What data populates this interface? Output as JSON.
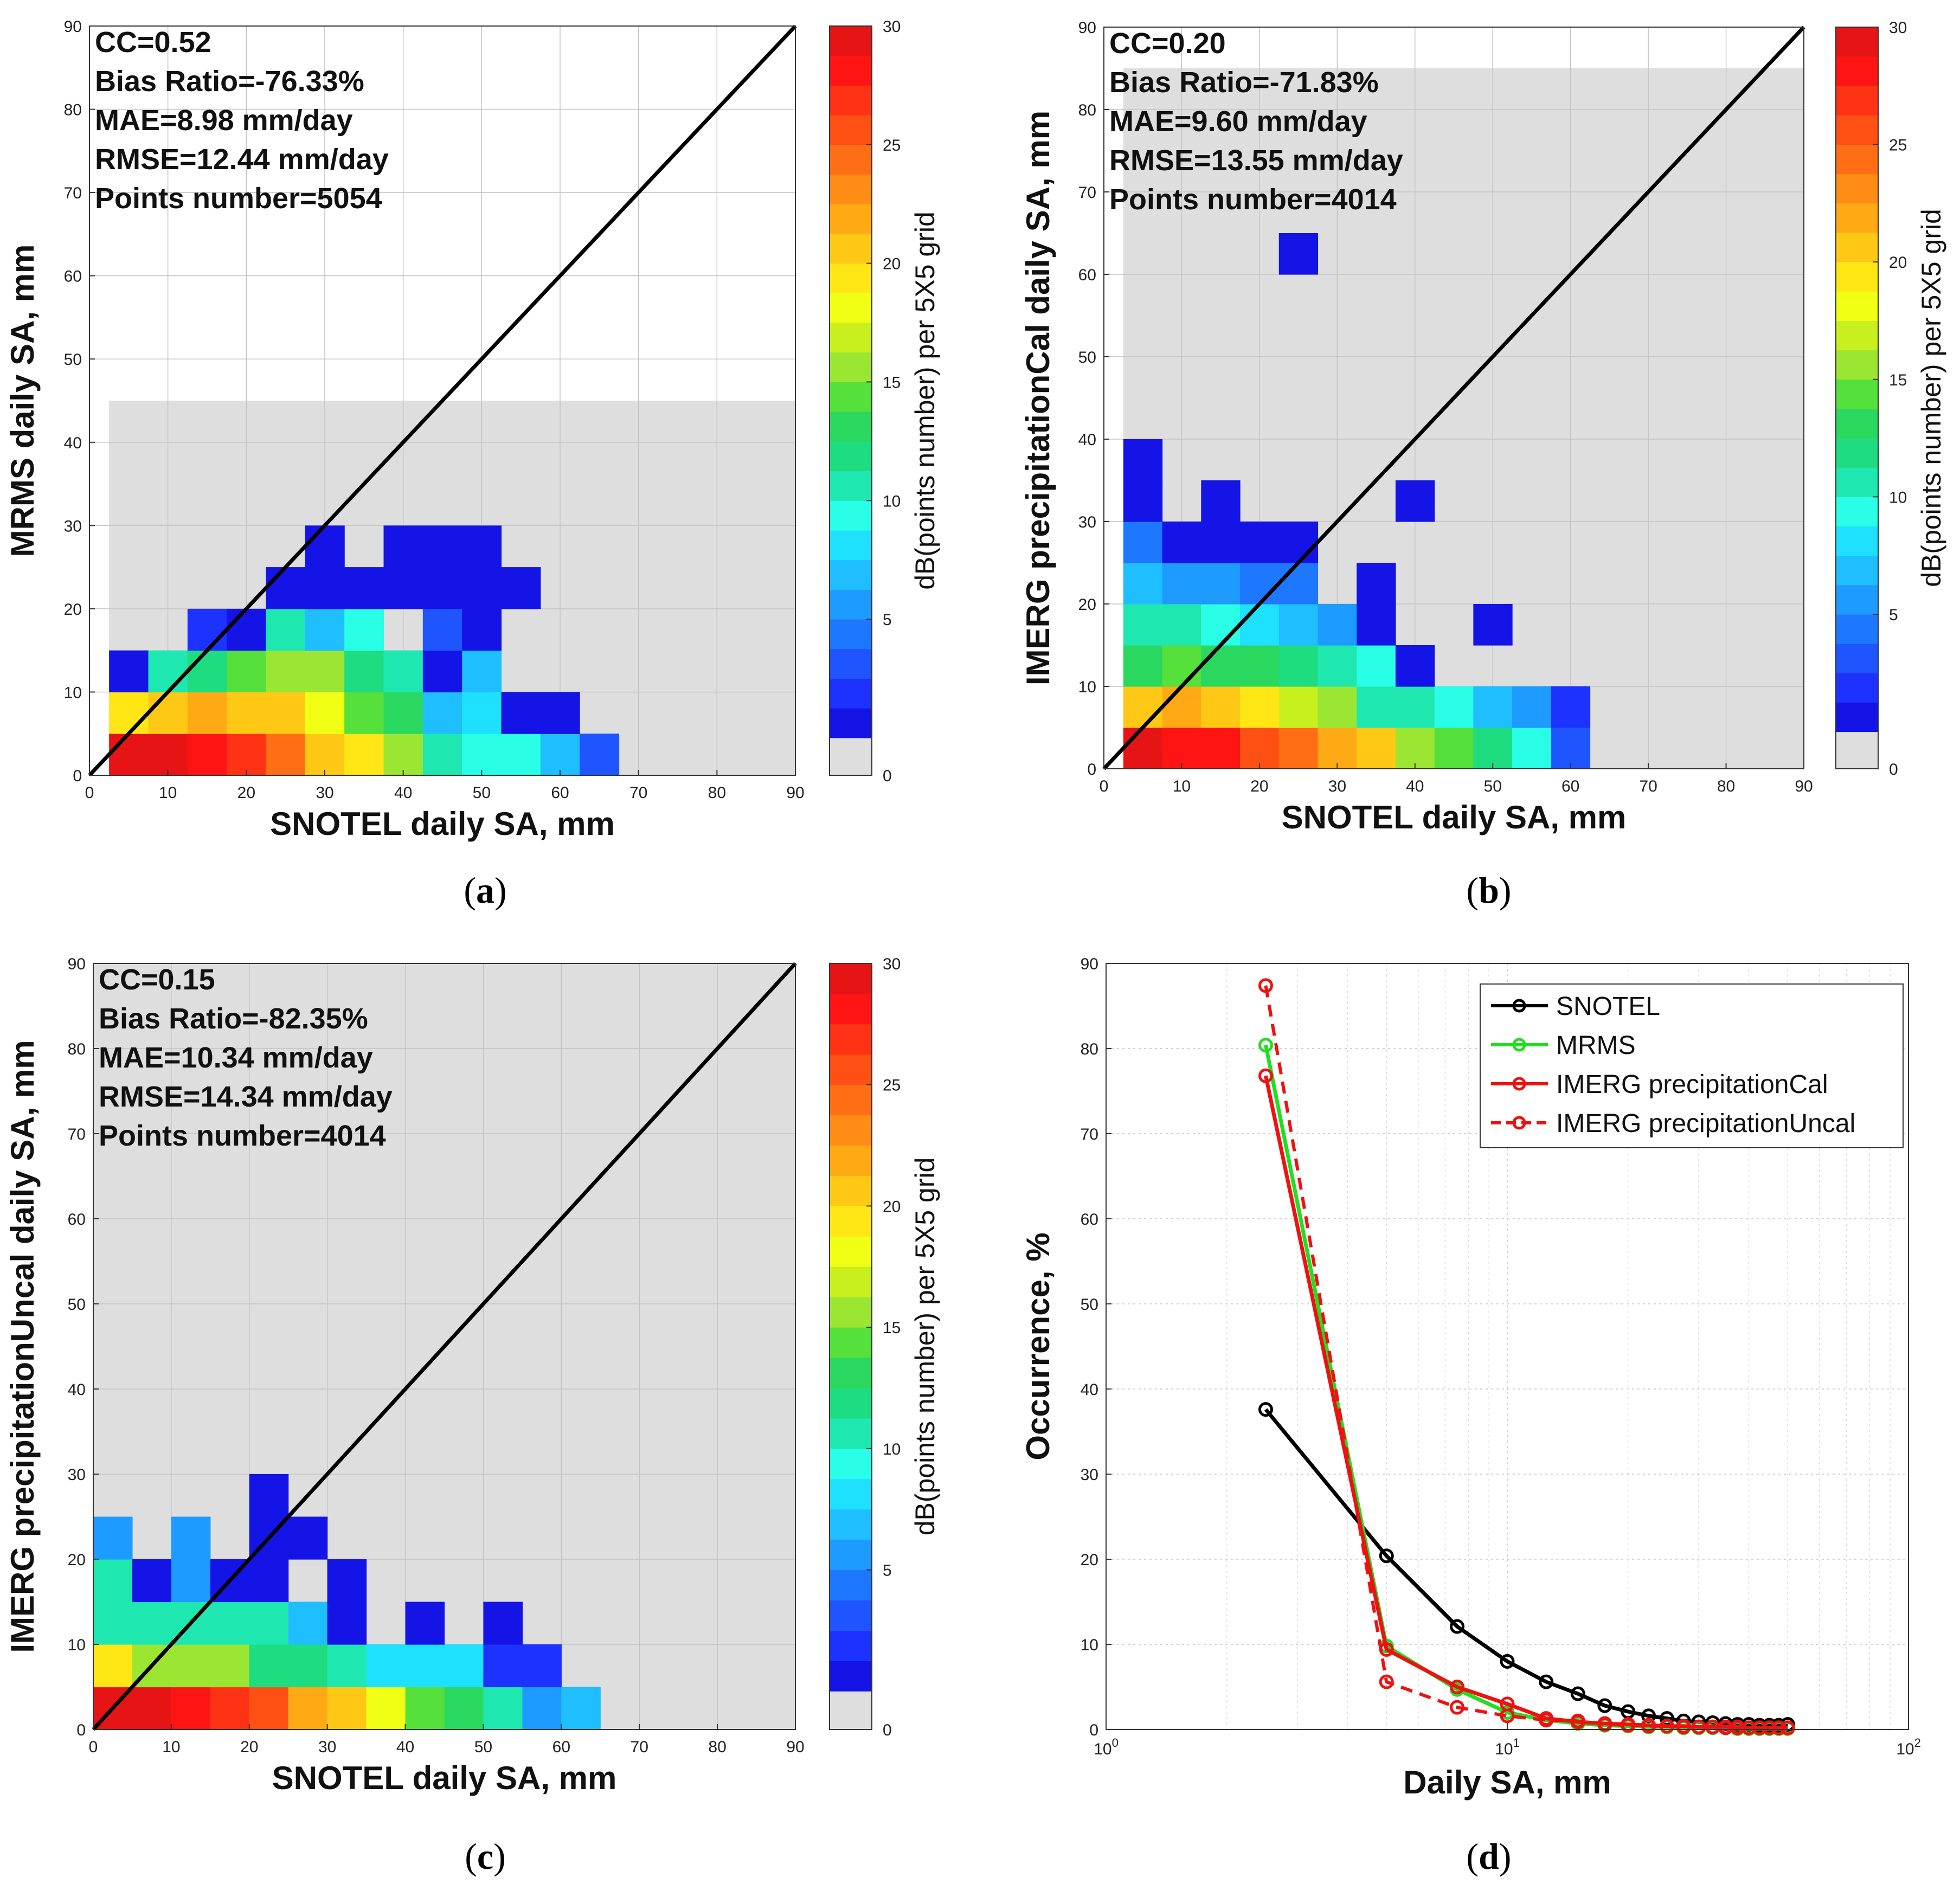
{
  "panel_labels": [
    "a",
    "b",
    "c",
    "d"
  ],
  "colorbar": {
    "label": "dB(points number) per 5X5 grid",
    "ticks": [
      0,
      5,
      10,
      15,
      20,
      25,
      30
    ],
    "levels": [
      "#1414e6",
      "#1e32ff",
      "#1e55ff",
      "#1e78ff",
      "#1e9bff",
      "#1ebeff",
      "#1ee1ff",
      "#28ffe6",
      "#1ee8b0",
      "#1edc80",
      "#2ad860",
      "#55e03c",
      "#9be632",
      "#c8f01e",
      "#f0ff14",
      "#ffe614",
      "#ffc814",
      "#ffaa14",
      "#ff8c14",
      "#ff6e14",
      "#ff5014",
      "#ff3214",
      "#ff1414",
      "#e61414"
    ],
    "zero_color": "#dedede"
  },
  "chart_data": [
    {
      "type": "heatmap",
      "panel": "a",
      "xlabel": "SNOTEL daily SA, mm",
      "ylabel": "MRMS daily SA, mm",
      "xlim": [
        0,
        90
      ],
      "ylim": [
        0,
        90
      ],
      "ticks": [
        0,
        10,
        20,
        30,
        40,
        50,
        60,
        70,
        80,
        90
      ],
      "bin_size": 5,
      "stats": [
        "CC=0.52",
        "Bias Ratio=-76.33%",
        "MAE=8.98 mm/day",
        "RMSE=12.44 mm/day",
        "Points number=5054"
      ],
      "background_extent": {
        "x": [
          2.5,
          90
        ],
        "y": [
          0,
          45
        ]
      },
      "cells": [
        [
          2.5,
          0,
          29
        ],
        [
          7.5,
          0,
          29
        ],
        [
          12.5,
          0,
          28
        ],
        [
          17.5,
          0,
          27
        ],
        [
          22.5,
          0,
          24
        ],
        [
          27.5,
          0,
          21
        ],
        [
          32.5,
          0,
          19
        ],
        [
          37.5,
          0,
          16
        ],
        [
          42.5,
          0,
          10
        ],
        [
          47.5,
          0,
          9
        ],
        [
          52.5,
          0,
          9
        ],
        [
          57.5,
          0,
          7
        ],
        [
          62.5,
          0,
          3
        ],
        [
          2.5,
          5,
          19
        ],
        [
          7.5,
          5,
          21
        ],
        [
          12.5,
          5,
          22
        ],
        [
          17.5,
          5,
          21
        ],
        [
          22.5,
          5,
          20
        ],
        [
          27.5,
          5,
          18
        ],
        [
          32.5,
          5,
          14
        ],
        [
          37.5,
          5,
          13
        ],
        [
          42.5,
          5,
          7
        ],
        [
          47.5,
          5,
          8
        ],
        [
          52.5,
          5,
          1
        ],
        [
          57.5,
          5,
          1
        ],
        [
          2.5,
          10,
          1
        ],
        [
          7.5,
          10,
          11
        ],
        [
          12.5,
          10,
          12
        ],
        [
          17.5,
          10,
          14
        ],
        [
          22.5,
          10,
          15
        ],
        [
          27.5,
          10,
          15
        ],
        [
          32.5,
          10,
          12
        ],
        [
          37.5,
          10,
          11
        ],
        [
          42.5,
          10,
          1
        ],
        [
          47.5,
          10,
          7
        ],
        [
          12.5,
          15,
          2
        ],
        [
          17.5,
          15,
          1
        ],
        [
          22.5,
          15,
          10
        ],
        [
          27.5,
          15,
          7
        ],
        [
          32.5,
          15,
          9
        ],
        [
          42.5,
          15,
          3
        ],
        [
          47.5,
          15,
          1
        ],
        [
          22.5,
          20,
          1
        ],
        [
          27.5,
          20,
          1
        ],
        [
          32.5,
          20,
          1
        ],
        [
          37.5,
          20,
          1
        ],
        [
          42.5,
          20,
          1
        ],
        [
          47.5,
          20,
          1
        ],
        [
          52.5,
          20,
          1
        ],
        [
          27.5,
          25,
          1
        ],
        [
          37.5,
          25,
          1
        ],
        [
          42.5,
          25,
          1
        ],
        [
          47.5,
          25,
          1
        ]
      ]
    },
    {
      "type": "heatmap",
      "panel": "b",
      "xlabel": "SNOTEL daily SA, mm",
      "ylabel": "IMERG precipitationCal daily SA, mm",
      "xlim": [
        0,
        90
      ],
      "ylim": [
        0,
        90
      ],
      "ticks": [
        0,
        10,
        20,
        30,
        40,
        50,
        60,
        70,
        80,
        90
      ],
      "bin_size": 5,
      "stats": [
        "CC=0.20",
        "Bias Ratio=-71.83%",
        "MAE=9.60 mm/day",
        "RMSE=13.55 mm/day",
        "Points number=4014"
      ],
      "background_extent": {
        "x": [
          2.5,
          90
        ],
        "y": [
          0,
          85
        ]
      },
      "cells": [
        [
          2.5,
          0,
          29
        ],
        [
          7.5,
          0,
          28
        ],
        [
          12.5,
          0,
          28
        ],
        [
          17.5,
          0,
          26
        ],
        [
          22.5,
          0,
          24
        ],
        [
          27.5,
          0,
          22
        ],
        [
          32.5,
          0,
          21
        ],
        [
          37.5,
          0,
          15
        ],
        [
          42.5,
          0,
          14
        ],
        [
          47.5,
          0,
          12
        ],
        [
          52.5,
          0,
          9
        ],
        [
          57.5,
          0,
          3
        ],
        [
          2.5,
          5,
          21
        ],
        [
          7.5,
          5,
          22
        ],
        [
          12.5,
          5,
          20
        ],
        [
          17.5,
          5,
          19
        ],
        [
          22.5,
          5,
          17
        ],
        [
          27.5,
          5,
          15
        ],
        [
          32.5,
          5,
          11
        ],
        [
          37.5,
          5,
          10
        ],
        [
          42.5,
          5,
          9
        ],
        [
          47.5,
          5,
          7
        ],
        [
          52.5,
          5,
          5
        ],
        [
          57.5,
          5,
          2
        ],
        [
          2.5,
          10,
          13
        ],
        [
          7.5,
          10,
          14
        ],
        [
          12.5,
          10,
          13
        ],
        [
          17.5,
          10,
          13
        ],
        [
          22.5,
          10,
          12
        ],
        [
          27.5,
          10,
          11
        ],
        [
          32.5,
          10,
          9
        ],
        [
          37.5,
          10,
          1
        ],
        [
          2.5,
          15,
          11
        ],
        [
          7.5,
          15,
          10
        ],
        [
          12.5,
          15,
          9
        ],
        [
          17.5,
          15,
          8
        ],
        [
          22.5,
          15,
          7
        ],
        [
          27.5,
          15,
          5
        ],
        [
          32.5,
          15,
          1
        ],
        [
          47.5,
          15,
          1
        ],
        [
          2.5,
          20,
          7
        ],
        [
          7.5,
          20,
          6
        ],
        [
          12.5,
          20,
          5
        ],
        [
          17.5,
          20,
          4
        ],
        [
          22.5,
          20,
          4
        ],
        [
          32.5,
          20,
          1
        ],
        [
          2.5,
          25,
          4
        ],
        [
          7.5,
          25,
          1
        ],
        [
          12.5,
          25,
          1
        ],
        [
          17.5,
          25,
          1
        ],
        [
          22.5,
          25,
          1
        ],
        [
          2.5,
          30,
          1
        ],
        [
          12.5,
          30,
          1
        ],
        [
          37.5,
          30,
          1
        ],
        [
          2.5,
          35,
          1
        ],
        [
          22.5,
          60,
          1
        ]
      ]
    },
    {
      "type": "heatmap",
      "panel": "c",
      "xlabel": "SNOTEL daily SA, mm",
      "ylabel": "IMERG precipitationUncal daily SA, mm",
      "xlim": [
        0,
        90
      ],
      "ylim": [
        0,
        90
      ],
      "ticks": [
        0,
        10,
        20,
        30,
        40,
        50,
        60,
        70,
        80,
        90
      ],
      "bin_size": 5,
      "stats": [
        "CC=0.15",
        "Bias Ratio=-82.35%",
        "MAE=10.34 mm/day",
        "RMSE=14.34 mm/day",
        "Points number=4014"
      ],
      "background_extent": {
        "x": [
          0,
          90
        ],
        "y": [
          0,
          90
        ]
      },
      "cells": [
        [
          0,
          0,
          29
        ],
        [
          5,
          0,
          29
        ],
        [
          10,
          0,
          28
        ],
        [
          15,
          0,
          27
        ],
        [
          20,
          0,
          25
        ],
        [
          25,
          0,
          22
        ],
        [
          30,
          0,
          20
        ],
        [
          35,
          0,
          18
        ],
        [
          40,
          0,
          14
        ],
        [
          45,
          0,
          13
        ],
        [
          50,
          0,
          10
        ],
        [
          55,
          0,
          6
        ],
        [
          60,
          0,
          7
        ],
        [
          0,
          5,
          19
        ],
        [
          5,
          5,
          15
        ],
        [
          10,
          5,
          15
        ],
        [
          15,
          5,
          15
        ],
        [
          20,
          5,
          12
        ],
        [
          25,
          5,
          12
        ],
        [
          30,
          5,
          10
        ],
        [
          35,
          5,
          8
        ],
        [
          40,
          5,
          8
        ],
        [
          45,
          5,
          8
        ],
        [
          50,
          5,
          2
        ],
        [
          55,
          5,
          2
        ],
        [
          0,
          10,
          11
        ],
        [
          5,
          10,
          10
        ],
        [
          10,
          10,
          10
        ],
        [
          15,
          10,
          10
        ],
        [
          20,
          10,
          10
        ],
        [
          25,
          10,
          7
        ],
        [
          30,
          10,
          1
        ],
        [
          40,
          10,
          1
        ],
        [
          50,
          10,
          1
        ],
        [
          0,
          15,
          10
        ],
        [
          5,
          15,
          1
        ],
        [
          10,
          15,
          5
        ],
        [
          15,
          15,
          1
        ],
        [
          20,
          15,
          1
        ],
        [
          30,
          15,
          1
        ],
        [
          0,
          20,
          6
        ],
        [
          10,
          20,
          5
        ],
        [
          20,
          20,
          1
        ],
        [
          25,
          20,
          1
        ],
        [
          20,
          25,
          1
        ]
      ]
    },
    {
      "type": "line",
      "panel": "d",
      "xlabel": "Daily SA, mm",
      "ylabel": "Occurrence, %",
      "xscale": "log",
      "xlim": [
        1,
        100
      ],
      "ylim": [
        0,
        90
      ],
      "yticks": [
        0,
        10,
        20,
        30,
        40,
        50,
        60,
        70,
        80,
        90
      ],
      "xtick_labels": [
        {
          "base": "10",
          "exp": "0"
        },
        {
          "base": "10",
          "exp": "1"
        },
        {
          "base": "10",
          "exp": "2"
        }
      ],
      "grid": true,
      "legend": "top-right",
      "x": [
        2.5,
        5,
        7.5,
        10,
        12.5,
        15,
        17.5,
        20,
        22.5,
        25,
        27.5,
        30,
        32.5,
        35,
        37.5,
        40,
        42.5,
        45,
        47.5,
        50
      ],
      "series": [
        {
          "name": "SNOTEL",
          "color": "#000000",
          "dashed": false,
          "values": [
            37.6,
            20.4,
            12.1,
            8.0,
            5.6,
            4.2,
            2.8,
            2.1,
            1.6,
            1.3,
            1.0,
            0.9,
            0.8,
            0.7,
            0.6,
            0.6,
            0.5,
            0.5,
            0.5,
            0.6
          ]
        },
        {
          "name": "MRMS",
          "color": "#22dd22",
          "dashed": false,
          "values": [
            80.4,
            9.8,
            4.7,
            2.0,
            1.1,
            0.7,
            0.5,
            0.4,
            0.3,
            0.3,
            0.2,
            0.2,
            0.2,
            0.2,
            0.1,
            0.1,
            0.1,
            0.1,
            0.1,
            0.1
          ]
        },
        {
          "name": "IMERG precipitationCal",
          "color": "#ee1111",
          "dashed": false,
          "values": [
            76.8,
            9.4,
            5.0,
            3.0,
            1.3,
            0.9,
            0.7,
            0.6,
            0.5,
            0.4,
            0.4,
            0.3,
            0.3,
            0.3,
            0.3,
            0.2,
            0.2,
            0.2,
            0.2,
            0.2
          ]
        },
        {
          "name": "IMERG precipitationUncal",
          "color": "#ee1111",
          "dashed": true,
          "values": [
            87.4,
            5.6,
            2.6,
            1.6,
            1.1,
            1.0,
            0.6,
            0.5,
            0.4,
            0.4,
            0.3,
            0.3,
            0.3,
            0.2,
            0.2,
            0.2,
            0.2,
            0.2,
            0.2,
            0.2
          ]
        }
      ]
    }
  ]
}
